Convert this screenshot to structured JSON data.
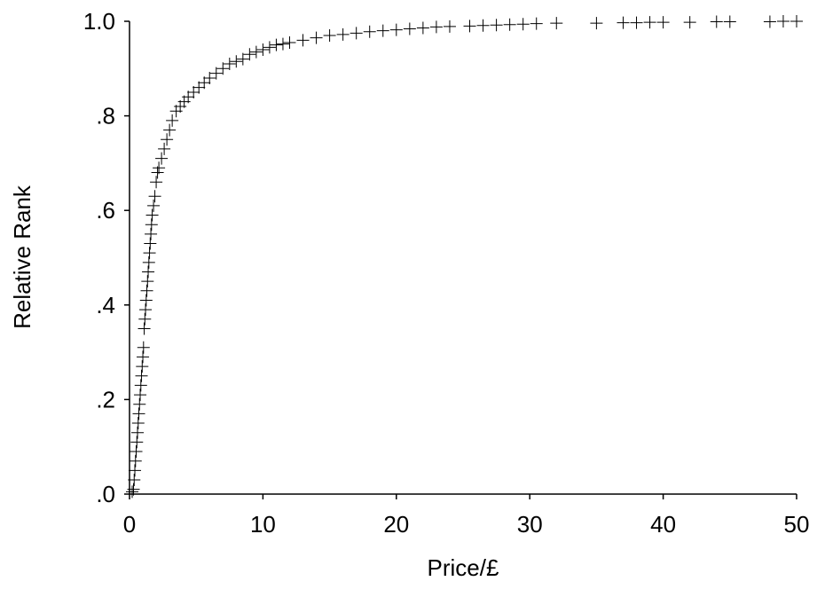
{
  "chart_data": {
    "type": "scatter",
    "title": "",
    "xlabel": "Price/£",
    "ylabel": "Relative Rank",
    "xlim": [
      0,
      50
    ],
    "ylim": [
      0,
      1
    ],
    "grid": false,
    "marker": "plus",
    "x_ticks": [
      {
        "value": 0,
        "label": "0"
      },
      {
        "value": 10,
        "label": "10"
      },
      {
        "value": 20,
        "label": "20"
      },
      {
        "value": 30,
        "label": "30"
      },
      {
        "value": 40,
        "label": "40"
      },
      {
        "value": 50,
        "label": "50"
      }
    ],
    "y_ticks": [
      {
        "value": 0,
        "label": ".0"
      },
      {
        "value": 0.2,
        "label": ".2"
      },
      {
        "value": 0.4,
        "label": ".4"
      },
      {
        "value": 0.6,
        "label": ".6"
      },
      {
        "value": 0.8,
        "label": ".8"
      },
      {
        "value": 1.0,
        "label": "1.0"
      }
    ],
    "series": [
      {
        "points": [
          [
            0.2,
            0.005
          ],
          [
            0.3,
            0.01
          ],
          [
            0.35,
            0.03
          ],
          [
            0.4,
            0.05
          ],
          [
            0.45,
            0.07
          ],
          [
            0.5,
            0.09
          ],
          [
            0.55,
            0.11
          ],
          [
            0.6,
            0.13
          ],
          [
            0.65,
            0.15
          ],
          [
            0.7,
            0.17
          ],
          [
            0.75,
            0.19
          ],
          [
            0.8,
            0.21
          ],
          [
            0.85,
            0.23
          ],
          [
            0.9,
            0.25
          ],
          [
            0.95,
            0.27
          ],
          [
            1.0,
            0.29
          ],
          [
            1.05,
            0.31
          ],
          [
            1.1,
            0.35
          ],
          [
            1.15,
            0.37
          ],
          [
            1.2,
            0.39
          ],
          [
            1.25,
            0.41
          ],
          [
            1.3,
            0.43
          ],
          [
            1.35,
            0.45
          ],
          [
            1.4,
            0.47
          ],
          [
            1.45,
            0.49
          ],
          [
            1.5,
            0.51
          ],
          [
            1.55,
            0.53
          ],
          [
            1.6,
            0.55
          ],
          [
            1.65,
            0.57
          ],
          [
            1.7,
            0.59
          ],
          [
            1.8,
            0.61
          ],
          [
            1.9,
            0.63
          ],
          [
            2.0,
            0.66
          ],
          [
            2.1,
            0.68
          ],
          [
            2.2,
            0.69
          ],
          [
            2.4,
            0.71
          ],
          [
            2.6,
            0.73
          ],
          [
            2.8,
            0.75
          ],
          [
            3.0,
            0.77
          ],
          [
            3.2,
            0.79
          ],
          [
            3.5,
            0.81
          ],
          [
            3.8,
            0.82
          ],
          [
            4.1,
            0.83
          ],
          [
            4.4,
            0.84
          ],
          [
            4.8,
            0.85
          ],
          [
            5.2,
            0.86
          ],
          [
            5.6,
            0.87
          ],
          [
            6.0,
            0.88
          ],
          [
            6.5,
            0.89
          ],
          [
            7.0,
            0.9
          ],
          [
            7.5,
            0.91
          ],
          [
            8.0,
            0.915
          ],
          [
            8.5,
            0.92
          ],
          [
            9.0,
            0.93
          ],
          [
            9.5,
            0.935
          ],
          [
            10.0,
            0.94
          ],
          [
            10.5,
            0.945
          ],
          [
            11.0,
            0.95
          ],
          [
            11.5,
            0.952
          ],
          [
            12.0,
            0.955
          ],
          [
            13.0,
            0.96
          ],
          [
            14.0,
            0.965
          ],
          [
            15.0,
            0.97
          ],
          [
            16.0,
            0.972
          ],
          [
            17.0,
            0.975
          ],
          [
            18.0,
            0.978
          ],
          [
            19.0,
            0.98
          ],
          [
            20.0,
            0.982
          ],
          [
            21.0,
            0.984
          ],
          [
            22.0,
            0.986
          ],
          [
            23.0,
            0.988
          ],
          [
            24.0,
            0.989
          ],
          [
            25.5,
            0.99
          ],
          [
            26.5,
            0.991
          ],
          [
            27.5,
            0.992
          ],
          [
            28.5,
            0.993
          ],
          [
            29.5,
            0.994
          ],
          [
            30.5,
            0.995
          ],
          [
            32.0,
            0.996
          ],
          [
            35.0,
            0.996
          ],
          [
            37.0,
            0.997
          ],
          [
            38.0,
            0.997
          ],
          [
            39.0,
            0.998
          ],
          [
            40.0,
            0.998
          ],
          [
            42.0,
            0.998
          ],
          [
            44.0,
            0.999
          ],
          [
            45.0,
            0.999
          ],
          [
            48.0,
            0.999
          ],
          [
            49.0,
            1.0
          ],
          [
            50.0,
            1.0
          ]
        ]
      }
    ]
  }
}
